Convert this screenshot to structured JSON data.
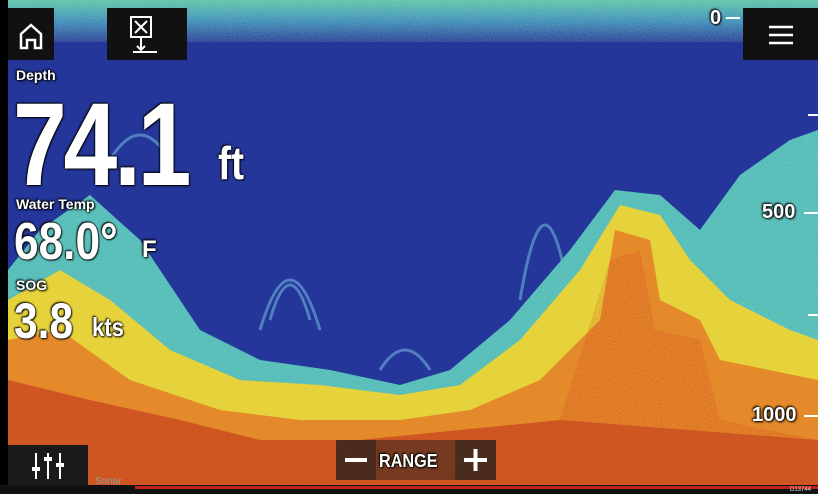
{
  "depth": {
    "label": "Depth",
    "value": "74.1",
    "unit": "ft"
  },
  "water_temp": {
    "label": "Water Temp",
    "value": "68.0°",
    "unit": "F"
  },
  "sog": {
    "label": "SOG",
    "value": "3.8",
    "unit": "kts"
  },
  "scale": {
    "ticks": [
      "0",
      "500",
      "1000"
    ]
  },
  "range": {
    "label": "RANGE"
  },
  "tab": {
    "label": "Sonar"
  },
  "image_id": "D13744"
}
